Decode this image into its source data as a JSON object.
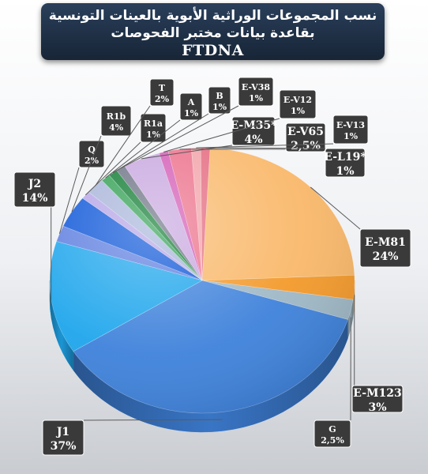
{
  "header": {
    "title_line1": "نسب المجموعات الوراثية الأبوية بالعينات التونسية",
    "title_line2": "بقاعدة بيانات مختبر الفحوصات",
    "title_line3": "FTDNA"
  },
  "chart_data": {
    "type": "pie",
    "title": "نسب المجموعات الوراثية الأبوية بالعينات التونسية بقاعدة بيانات مختبر الفحوصات FTDNA",
    "three_d": true,
    "slices": [
      {
        "label": "E-M81",
        "value_text": "24%",
        "value": 24,
        "color": "#f9b86a"
      },
      {
        "label": "E-M123",
        "value_text": "3%",
        "value": 3,
        "color": "#f39a2c"
      },
      {
        "label": "G",
        "value_text": "2,5%",
        "value": 2.5,
        "color": "#9fb8c6"
      },
      {
        "label": "J1",
        "value_text": "37%",
        "value": 37,
        "color": "#3f82db"
      },
      {
        "label": "J2",
        "value_text": "14%",
        "value": 14,
        "color": "#1fa6ec"
      },
      {
        "label": "Q",
        "value_text": "2%",
        "value": 2,
        "color": "#5f7fe0"
      },
      {
        "label": "R1b",
        "value_text": "4%",
        "value": 4,
        "color": "#0d56d8"
      },
      {
        "label": "R1a",
        "value_text": "1%",
        "value": 1,
        "color": "#b5a4e6"
      },
      {
        "label": "T",
        "value_text": "2%",
        "value": 2,
        "color": "#a7b4d9"
      },
      {
        "label": "A",
        "value_text": "1%",
        "value": 1,
        "color": "#2e9e50"
      },
      {
        "label": "B",
        "value_text": "1%",
        "value": 1,
        "color": "#0c7a2f"
      },
      {
        "label": "E-V38",
        "value_text": "1%",
        "value": 1,
        "color": "#6b7183"
      },
      {
        "label": "E-M35*",
        "value_text": "4%",
        "value": 4,
        "color": "#c7a6df"
      },
      {
        "label": "E-V12",
        "value_text": "1%",
        "value": 1,
        "color": "#d35bb5"
      },
      {
        "label": "E-V65",
        "value_text": "2,5%",
        "value": 2.5,
        "color": "#ec6f8a"
      },
      {
        "label": "E-V13",
        "value_text": "1%",
        "value": 1,
        "color": "#f2a2a8"
      },
      {
        "label": "E-L19*",
        "value_text": "1%",
        "value": 1,
        "color": "#e46a7f"
      }
    ]
  }
}
